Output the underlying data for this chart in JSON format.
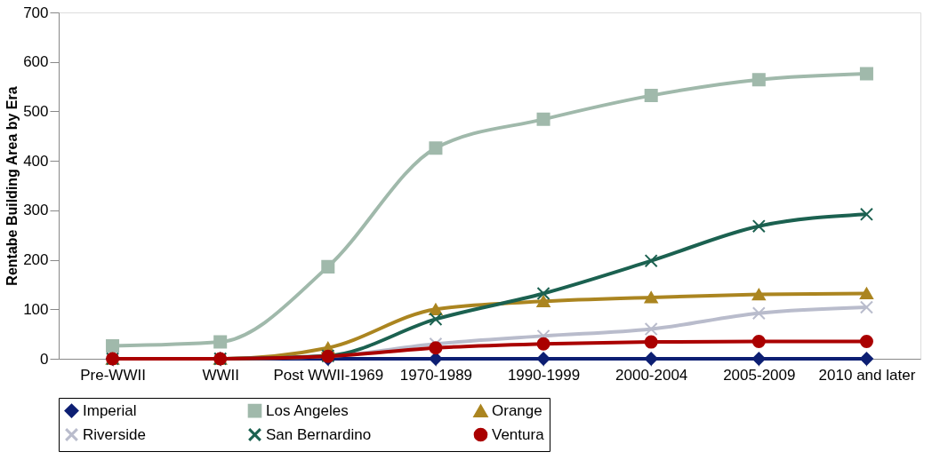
{
  "chart_data": {
    "type": "line",
    "ylabel": "Rentabe Building Area by Era",
    "categories": [
      "Pre-WWII",
      "WWII",
      "Post WWII-1969",
      "1970-1989",
      "1990-1999",
      "2000-2004",
      "2005-2009",
      "2010 and later"
    ],
    "series": [
      {
        "name": "Imperial",
        "color": "#0d1f73",
        "marker": "diamond",
        "values": [
          0,
          0,
          0,
          0,
          0,
          0,
          0,
          0
        ]
      },
      {
        "name": "Los Angeles",
        "color": "#a0b9ab",
        "marker": "square",
        "values": [
          26,
          34,
          186,
          426,
          484,
          532,
          564,
          576
        ]
      },
      {
        "name": "Orange",
        "color": "#ab8520",
        "marker": "triangle",
        "values": [
          0,
          0,
          22,
          100,
          116,
          124,
          130,
          132
        ]
      },
      {
        "name": "Riverside",
        "color": "#b9bccc",
        "marker": "cross",
        "values": [
          0,
          0,
          5,
          30,
          46,
          60,
          92,
          104
        ]
      },
      {
        "name": "San Bernardino",
        "color": "#1b6150",
        "marker": "cross",
        "values": [
          0,
          0,
          6,
          80,
          132,
          198,
          268,
          292
        ]
      },
      {
        "name": "Ventura",
        "color": "#aa0000",
        "marker": "circle",
        "values": [
          0,
          0,
          5,
          22,
          30,
          34,
          35,
          35
        ]
      }
    ],
    "ylim": [
      0,
      700
    ],
    "yticks": [
      0,
      100,
      200,
      300,
      400,
      500,
      600,
      700
    ],
    "grid": false,
    "legend": "bottom"
  }
}
